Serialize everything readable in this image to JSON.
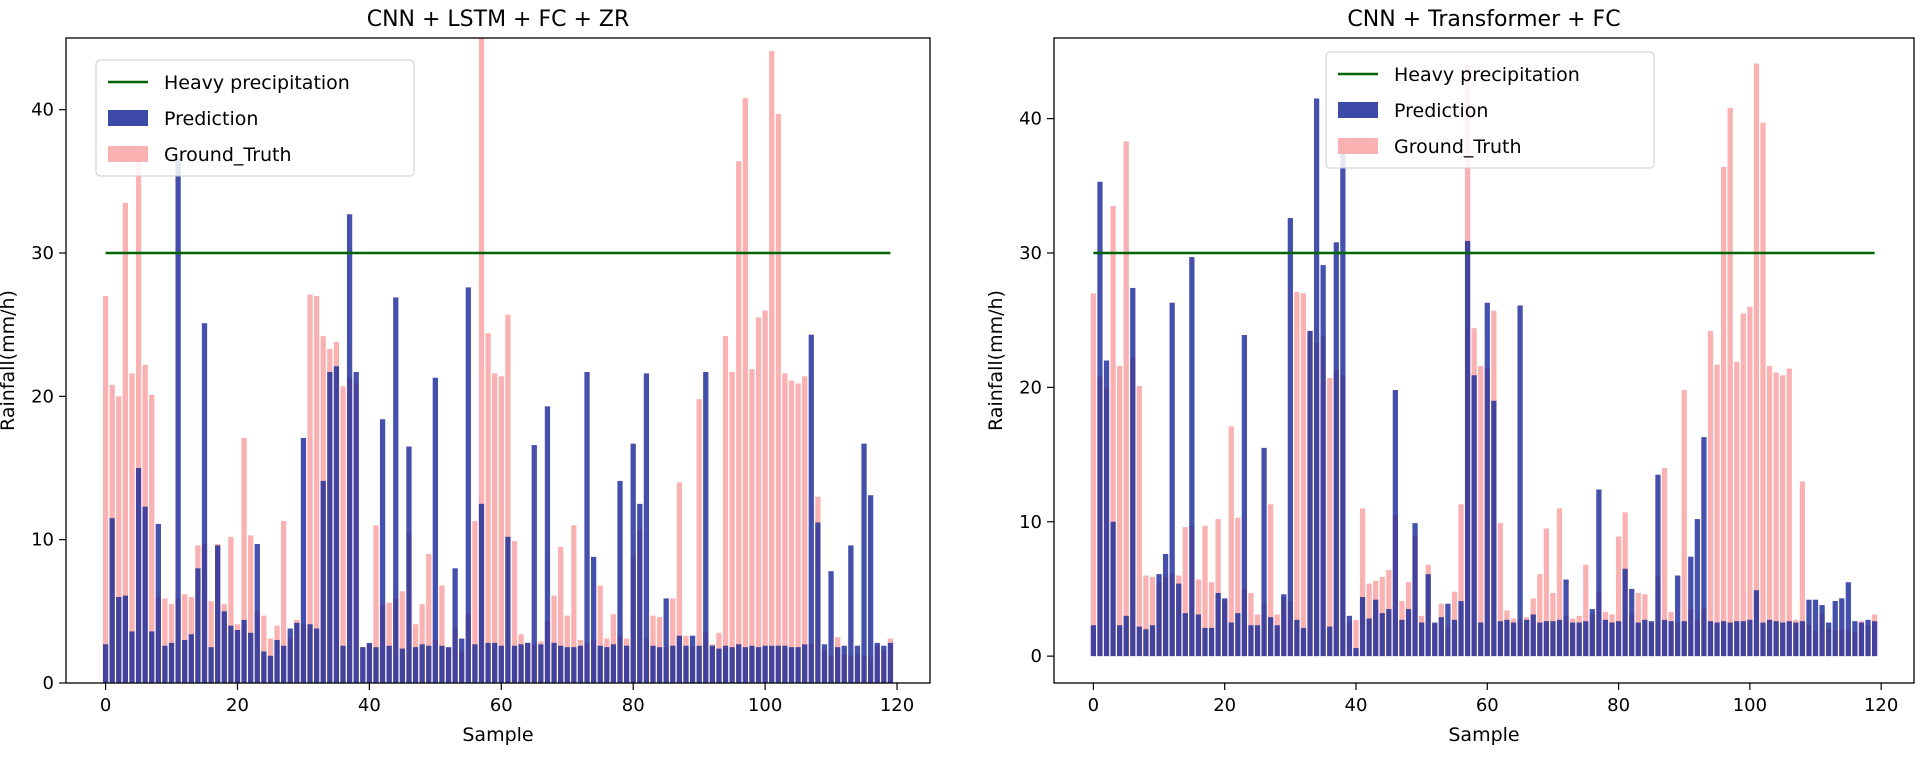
{
  "figure": {
    "colors": {
      "prediction": "#1b2a99",
      "ground_truth": "#f8a9aa",
      "heavy_line": "#006400"
    }
  },
  "chart_data": [
    {
      "type": "bar",
      "title": "CNN + LSTM + FC + ZR",
      "xlabel": "Sample",
      "ylabel": "Rainfall(mm/h)",
      "xlim": [
        -6,
        125
      ],
      "ylim": [
        0,
        45
      ],
      "xticks": [
        0,
        20,
        40,
        60,
        80,
        100,
        120
      ],
      "yticks": [
        0,
        10,
        20,
        30,
        40
      ],
      "legend": {
        "position": "upper-left",
        "entries": [
          "Heavy precipitation",
          "Prediction",
          "Ground_Truth"
        ]
      },
      "heavy_threshold": 30,
      "series": [
        {
          "name": "Ground_Truth",
          "kind": "bar",
          "values": [
            27.0,
            20.8,
            20.0,
            33.5,
            21.6,
            37.0,
            22.2,
            20.1,
            6.0,
            5.9,
            5.5,
            5.9,
            6.2,
            6.0,
            9.6,
            9.7,
            5.7,
            9.7,
            5.5,
            10.2,
            4.1,
            17.1,
            10.3,
            5.0,
            4.7,
            3.1,
            4.0,
            11.3,
            3.1,
            4.4,
            4.1,
            27.1,
            27.0,
            24.2,
            23.3,
            23.8,
            20.7,
            21.3,
            20.9,
            2.5,
            2.7,
            11.0,
            5.4,
            5.6,
            5.9,
            6.4,
            10.5,
            4.1,
            5.5,
            9.0,
            3.0,
            6.8,
            2.4,
            3.9,
            2.2,
            4.8,
            11.3,
            45.0,
            24.4,
            21.6,
            21.4,
            25.7,
            9.9,
            3.4,
            2.8,
            2.7,
            2.9,
            4.3,
            6.1,
            9.5,
            4.7,
            11.0,
            3.0,
            2.8,
            3.0,
            6.8,
            3.1,
            4.8,
            3.3,
            3.1,
            8.9,
            10.7,
            3.1,
            4.7,
            4.6,
            2.5,
            5.9,
            14.0,
            3.3,
            2.5,
            19.8,
            3.5,
            2.7,
            3.5,
            24.2,
            21.7,
            36.4,
            40.8,
            21.9,
            25.5,
            26.0,
            44.1,
            39.7,
            21.6,
            21.1,
            20.9,
            21.4,
            2.7,
            13.0,
            2.3,
            1.9,
            3.2,
            2.0,
            1.9,
            2.0,
            1.9,
            1.8,
            2.6,
            2.3,
            3.1
          ]
        },
        {
          "name": "Prediction",
          "kind": "bar",
          "values": [
            2.7,
            11.5,
            6.0,
            6.1,
            3.6,
            15.0,
            12.3,
            3.6,
            11.1,
            2.6,
            2.8,
            36.6,
            3.0,
            3.4,
            8.0,
            25.1,
            2.5,
            9.6,
            5.0,
            4.0,
            3.7,
            4.4,
            3.5,
            9.7,
            2.2,
            1.9,
            3.0,
            2.6,
            3.8,
            4.2,
            17.1,
            4.1,
            3.8,
            14.1,
            21.7,
            22.1,
            2.6,
            32.7,
            21.7,
            2.5,
            2.8,
            2.5,
            18.4,
            2.6,
            26.9,
            2.4,
            16.5,
            2.5,
            2.7,
            2.6,
            21.3,
            2.6,
            2.5,
            8.0,
            3.1,
            27.6,
            2.7,
            12.5,
            2.8,
            2.8,
            2.6,
            10.2,
            2.6,
            2.7,
            2.8,
            16.6,
            2.7,
            19.3,
            2.8,
            2.6,
            2.5,
            2.5,
            2.6,
            21.7,
            8.8,
            2.6,
            2.5,
            2.7,
            14.1,
            2.6,
            16.7,
            12.5,
            21.6,
            2.6,
            2.5,
            5.9,
            2.6,
            3.3,
            2.6,
            3.3,
            2.6,
            21.7,
            2.6,
            2.4,
            2.6,
            2.5,
            2.7,
            2.5,
            2.6,
            2.5,
            2.6,
            2.6,
            2.6,
            2.6,
            2.5,
            2.5,
            2.7,
            24.3,
            11.2,
            2.7,
            7.8,
            2.5,
            2.6,
            9.6,
            2.6,
            16.7,
            13.1,
            2.8,
            2.6,
            2.8
          ]
        }
      ]
    },
    {
      "type": "bar",
      "title": "CNN + Transformer + FC",
      "xlabel": "Sample",
      "ylabel": "Rainfall(mm/h)",
      "xlim": [
        -6,
        125
      ],
      "ylim": [
        -2,
        46
      ],
      "xticks": [
        0,
        20,
        40,
        60,
        80,
        100,
        120
      ],
      "yticks": [
        0,
        10,
        20,
        30,
        40
      ],
      "legend": {
        "position": "upper-center",
        "entries": [
          "Heavy precipitation",
          "Prediction",
          "Ground_Truth"
        ]
      },
      "heavy_threshold": 30,
      "series": [
        {
          "name": "Ground_Truth",
          "kind": "bar",
          "values": [
            27.0,
            20.8,
            20.0,
            33.5,
            21.6,
            38.3,
            22.2,
            20.1,
            6.0,
            5.9,
            5.5,
            5.9,
            6.2,
            6.0,
            9.6,
            9.7,
            5.7,
            9.7,
            5.5,
            10.2,
            4.1,
            17.1,
            10.3,
            5.0,
            4.7,
            3.1,
            4.0,
            11.3,
            3.1,
            4.4,
            4.1,
            27.1,
            27.0,
            24.2,
            23.3,
            23.8,
            20.7,
            21.3,
            20.9,
            2.5,
            2.7,
            11.0,
            5.4,
            5.6,
            5.9,
            6.4,
            10.5,
            4.1,
            5.5,
            9.0,
            3.0,
            6.8,
            2.4,
            3.9,
            2.2,
            4.8,
            11.3,
            44.0,
            24.4,
            21.6,
            21.4,
            25.7,
            9.9,
            3.4,
            2.8,
            2.7,
            2.9,
            4.3,
            6.1,
            9.5,
            4.7,
            11.0,
            3.0,
            2.8,
            3.0,
            6.8,
            3.1,
            4.8,
            3.3,
            3.1,
            8.9,
            10.7,
            3.1,
            4.7,
            4.6,
            2.5,
            5.9,
            14.0,
            3.3,
            2.5,
            19.8,
            3.5,
            2.7,
            3.5,
            24.2,
            21.7,
            36.4,
            40.8,
            21.9,
            25.5,
            26.0,
            44.1,
            39.7,
            21.6,
            21.1,
            20.9,
            21.4,
            2.7,
            13.0,
            2.3,
            1.9,
            3.2,
            2.0,
            1.9,
            2.0,
            1.9,
            1.8,
            2.6,
            2.3,
            3.1
          ]
        },
        {
          "name": "Prediction",
          "kind": "bar",
          "values": [
            2.3,
            35.3,
            22.0,
            10.0,
            2.3,
            3.0,
            27.4,
            2.2,
            2.0,
            2.3,
            6.1,
            7.6,
            26.3,
            5.4,
            3.2,
            29.7,
            3.1,
            2.1,
            2.1,
            4.7,
            4.3,
            2.5,
            3.2,
            23.9,
            2.3,
            2.3,
            15.5,
            2.9,
            2.3,
            4.6,
            32.6,
            2.7,
            2.1,
            24.2,
            41.5,
            29.1,
            2.2,
            30.8,
            38.0,
            3.0,
            0.6,
            4.4,
            2.8,
            4.2,
            3.2,
            3.5,
            19.8,
            2.7,
            3.5,
            9.9,
            2.5,
            6.1,
            2.5,
            2.9,
            3.9,
            2.7,
            4.1,
            30.9,
            20.9,
            2.5,
            26.3,
            19.0,
            2.6,
            2.7,
            2.5,
            26.1,
            2.7,
            3.1,
            2.5,
            2.6,
            2.6,
            2.7,
            5.7,
            2.5,
            2.5,
            2.6,
            3.5,
            12.4,
            2.7,
            2.5,
            2.6,
            6.5,
            5.0,
            2.5,
            2.7,
            2.6,
            13.5,
            2.7,
            2.6,
            6.0,
            2.6,
            7.4,
            10.2,
            16.3,
            2.6,
            2.5,
            2.6,
            2.5,
            2.6,
            2.6,
            2.7,
            4.9,
            2.5,
            2.7,
            2.6,
            2.5,
            2.6,
            2.5,
            2.6,
            4.2,
            4.2,
            3.8,
            2.5,
            4.1,
            4.3,
            5.5,
            2.6,
            2.5,
            2.7,
            2.6
          ]
        }
      ]
    }
  ]
}
